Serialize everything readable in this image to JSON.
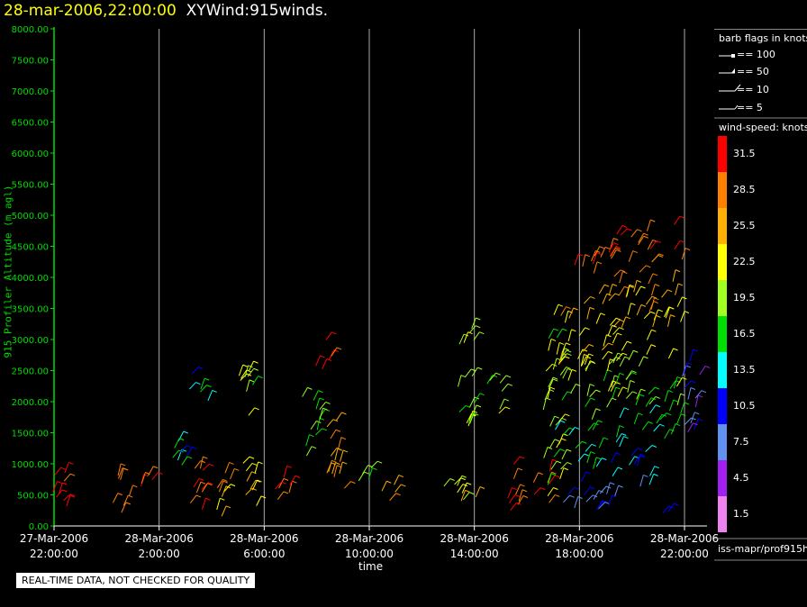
{
  "header": {
    "timestamp": "28-mar-2006,22:00:00",
    "plot_name": "XYWind:915winds."
  },
  "notice": "REAL-TIME DATA, NOT CHECKED FOR QUALITY",
  "legend": {
    "flags_title": "barb flags in knots",
    "flags": [
      "== 100",
      "== 50",
      "== 10",
      "== 5"
    ],
    "speed_title": "wind-speed: knots",
    "source": "iss-mapr/prof915h"
  },
  "colors": {
    "background": "#000000",
    "title_timestamp": "#ffff00",
    "axis_green": "#00dd00",
    "grid": "#aaaaaa"
  },
  "chart_data": {
    "type": "scatter",
    "subtype": "wind-barb",
    "title": "XYWind:915winds.",
    "xlabel": "time",
    "ylabel": "915 Profiler Altitude (m agl)",
    "xlim": [
      "2006-03-27 22:00",
      "2006-03-28 22:30"
    ],
    "ylim": [
      0,
      8000
    ],
    "grid": "vertical lines at x ticks",
    "legend_position": "right",
    "y_ticks": [
      "0.00",
      "500.00",
      "1000.00",
      "1500.00",
      "2000.00",
      "2500.00",
      "3000.00",
      "3500.00",
      "4000.00",
      "4500.00",
      "5000.00",
      "5500.00",
      "6000.00",
      "6500.00",
      "7000.00",
      "7500.00",
      "8000.00"
    ],
    "x_ticks": [
      {
        "date": "27-Mar-2006",
        "time": "22:00:00"
      },
      {
        "date": "28-Mar-2006",
        "time": "2:00:00"
      },
      {
        "date": "28-Mar-2006",
        "time": "6:00:00"
      },
      {
        "date": "28-Mar-2006",
        "time": "10:00:00"
      },
      {
        "date": "28-Mar-2006",
        "time": "14:00:00"
      },
      {
        "date": "28-Mar-2006",
        "time": "18:00:00"
      },
      {
        "date": "28-Mar-2006",
        "time": "22:00:00"
      }
    ],
    "colorbar": {
      "labels": [
        "31.5",
        "28.5",
        "25.5",
        "22.5",
        "19.5",
        "16.5",
        "13.5",
        "10.5",
        "7.5",
        "4.5",
        "1.5"
      ],
      "colors": [
        "#ff0000",
        "#ff8000",
        "#ffb000",
        "#ffff00",
        "#a0ff20",
        "#00e000",
        "#00ffff",
        "#0000ff",
        "#6090f0",
        "#a020f0",
        "#ee82ee"
      ]
    },
    "series": [
      {
        "time": "2006-03-27 22:15",
        "alt_min": 150,
        "alt_max": 1000,
        "speed_kt": 30
      },
      {
        "time": "2006-03-28 00:30",
        "alt_min": 150,
        "alt_max": 850,
        "speed_kt": 28
      },
      {
        "time": "2006-03-28 01:30",
        "alt_min": 600,
        "alt_max": 900,
        "speed_kt": 30
      },
      {
        "time": "2006-03-28 02:45",
        "alt_min": 700,
        "alt_max": 1400,
        "speed_kt": 14
      },
      {
        "time": "2006-03-28 03:30",
        "alt_min": 150,
        "alt_max": 1050,
        "speed_kt": 30
      },
      {
        "time": "2006-03-28 04:30",
        "alt_min": 150,
        "alt_max": 1000,
        "speed_kt": 26
      },
      {
        "time": "2006-03-28 05:30",
        "alt_min": 300,
        "alt_max": 1100,
        "speed_kt": 24
      },
      {
        "time": "2006-03-28 03:30",
        "alt_min": 2000,
        "alt_max": 2500,
        "speed_kt": 13
      },
      {
        "time": "2006-03-28 05:15",
        "alt_min": 1600,
        "alt_max": 2500,
        "speed_kt": 20
      },
      {
        "time": "2006-03-28 06:45",
        "alt_min": 400,
        "alt_max": 1000,
        "speed_kt": 30
      },
      {
        "time": "2006-03-28 07:45",
        "alt_min": 1000,
        "alt_max": 2100,
        "speed_kt": 18
      },
      {
        "time": "2006-03-28 08:15",
        "alt_min": 2500,
        "alt_max": 3000,
        "speed_kt": 31
      },
      {
        "time": "2006-03-28 08:45",
        "alt_min": 500,
        "alt_max": 1800,
        "speed_kt": 27
      },
      {
        "time": "2006-03-28 09:45",
        "alt_min": 700,
        "alt_max": 1000,
        "speed_kt": 20
      },
      {
        "time": "2006-03-28 10:45",
        "alt_min": 400,
        "alt_max": 700,
        "speed_kt": 27
      },
      {
        "time": "2006-03-28 13:00",
        "alt_min": 500,
        "alt_max": 800,
        "speed_kt": 21
      },
      {
        "time": "2006-03-28 13:45",
        "alt_min": 400,
        "alt_max": 700,
        "speed_kt": 23
      },
      {
        "time": "2006-03-28 13:45",
        "alt_min": 1600,
        "alt_max": 3300,
        "speed_kt": 19
      },
      {
        "time": "2006-03-28 14:45",
        "alt_min": 1800,
        "alt_max": 2400,
        "speed_kt": 20
      },
      {
        "time": "2006-03-28 15:30",
        "alt_min": 150,
        "alt_max": 1000,
        "speed_kt": 30
      },
      {
        "time": "2006-03-28 16:30",
        "alt_min": 300,
        "alt_max": 900,
        "speed_kt": 29
      },
      {
        "time": "2006-03-28 17:00",
        "alt_min": 400,
        "alt_max": 3500,
        "speed_kt": 20
      },
      {
        "time": "2006-03-28 18:00",
        "alt_min": 200,
        "alt_max": 4400,
        "speed_kt": 19
      },
      {
        "time": "2006-03-28 19:00",
        "alt_min": 150,
        "alt_max": 4500,
        "speed_kt": 19
      },
      {
        "time": "2006-03-28 20:00",
        "alt_min": 150,
        "alt_max": 4700,
        "speed_kt": 19
      },
      {
        "time": "2006-03-28 21:00",
        "alt_min": 150,
        "alt_max": 4900,
        "speed_kt": 19
      },
      {
        "time": "2006-03-28 22:15",
        "alt_min": 1500,
        "alt_max": 2700,
        "speed_kt": 8
      }
    ]
  }
}
